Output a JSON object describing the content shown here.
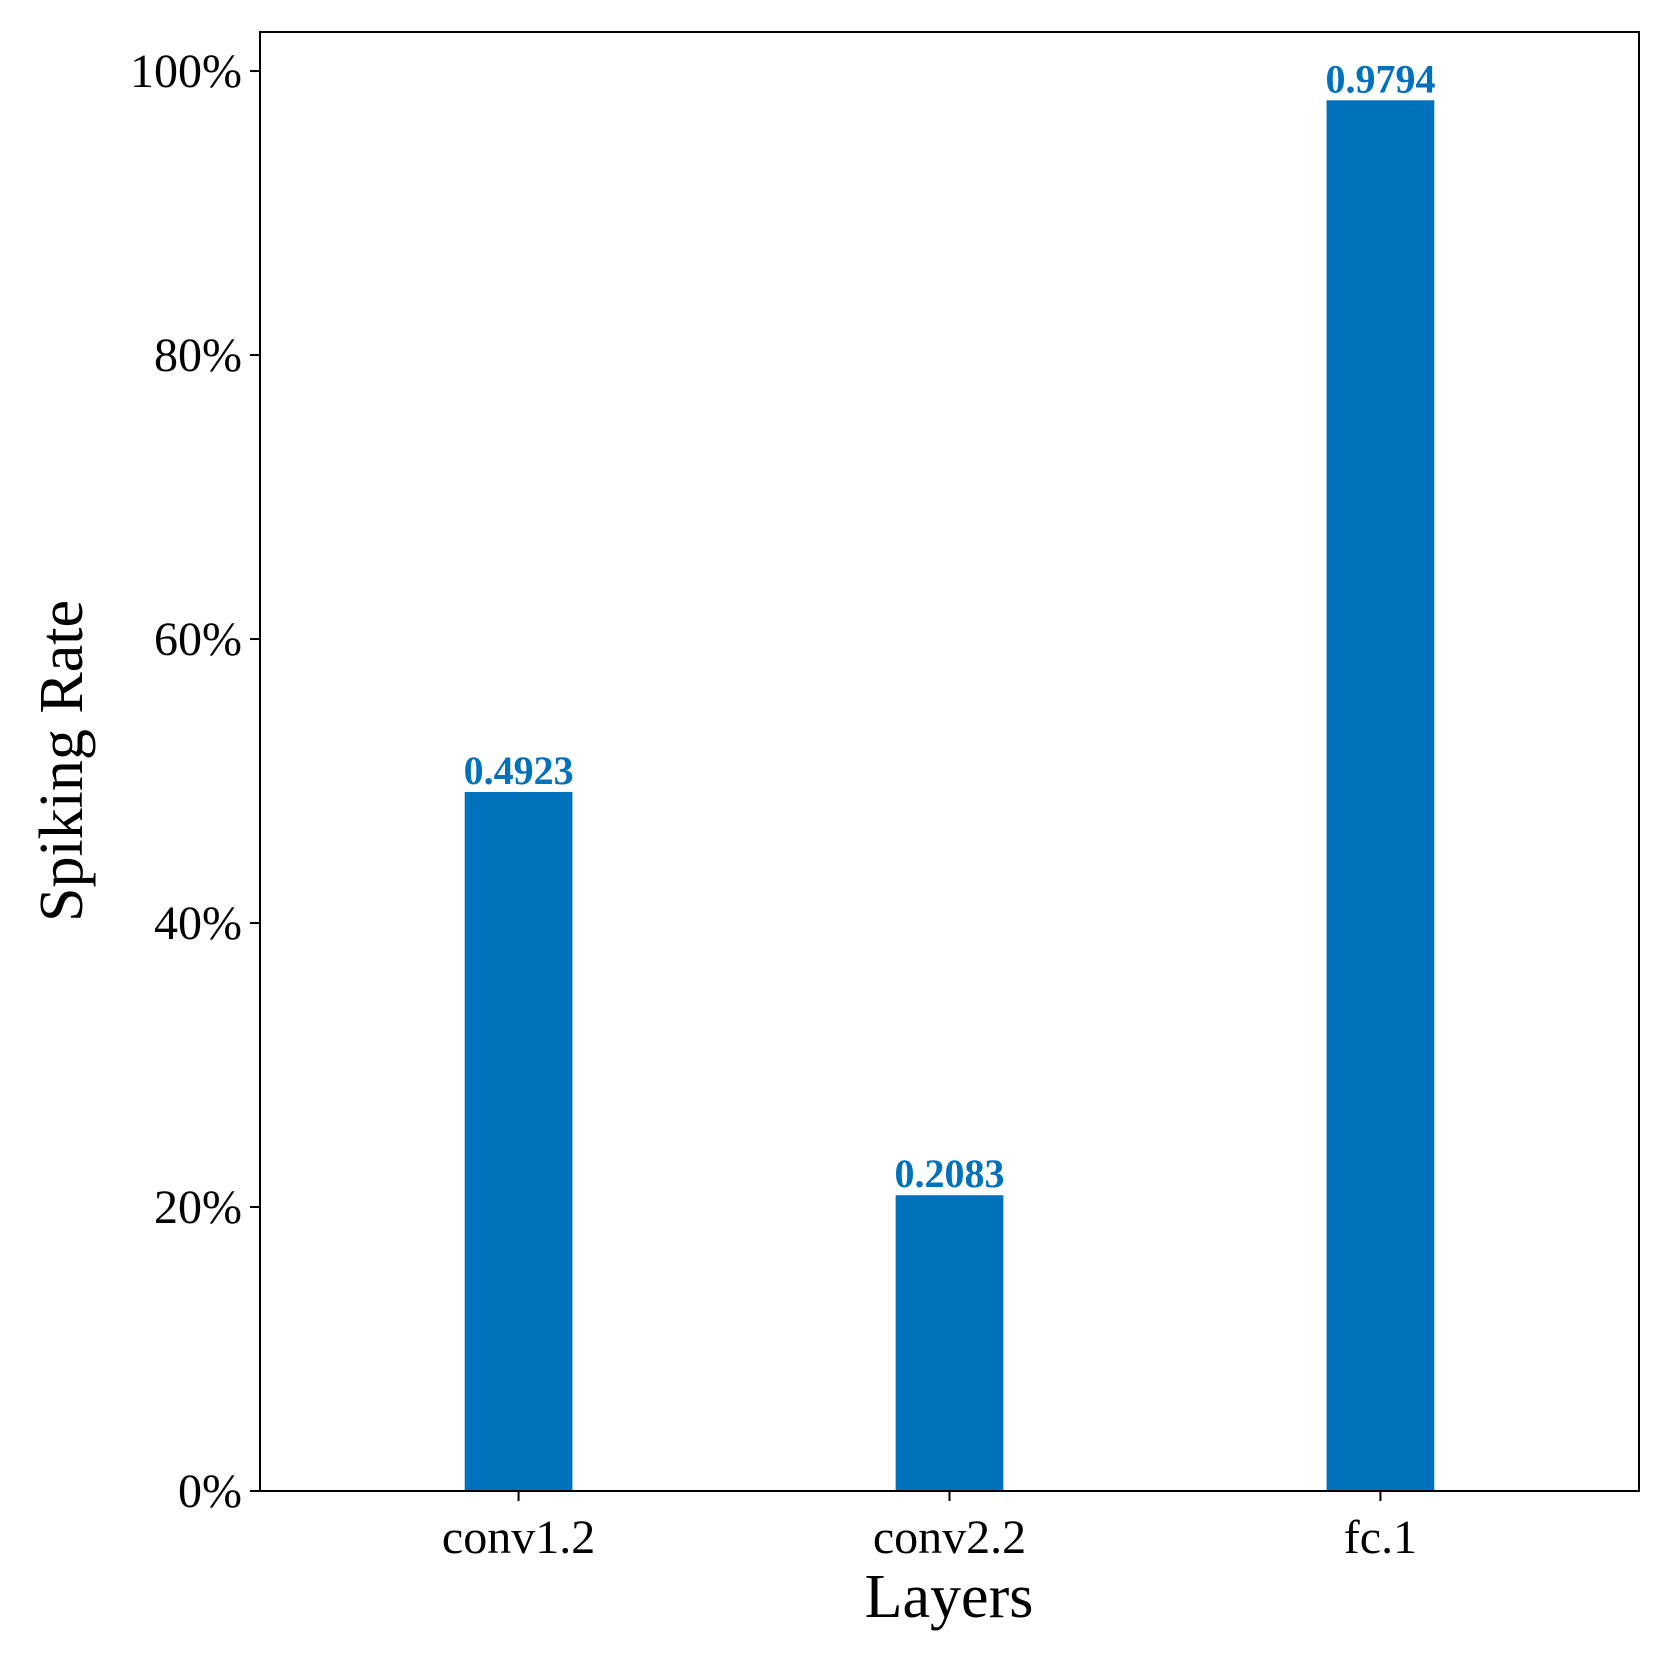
{
  "chart_data": {
    "type": "bar",
    "title": "",
    "xlabel": "Layers",
    "ylabel": "Spiking Rate",
    "categories": [
      "conv1.2",
      "conv2.2",
      "fc.1"
    ],
    "values": [
      0.4923,
      0.2083,
      0.9794
    ],
    "value_labels": [
      "0.4923",
      "0.2083",
      "0.9794"
    ],
    "ylim": [
      0,
      1.0275
    ],
    "yticks": [
      0,
      0.2,
      0.4,
      0.6,
      0.8,
      1.0
    ],
    "ytick_labels": [
      "0%",
      "20%",
      "40%",
      "60%",
      "80%",
      "100%"
    ],
    "grid": false,
    "legend": "none",
    "bar_color": "#0071bc",
    "label_color": "#0071bc"
  }
}
